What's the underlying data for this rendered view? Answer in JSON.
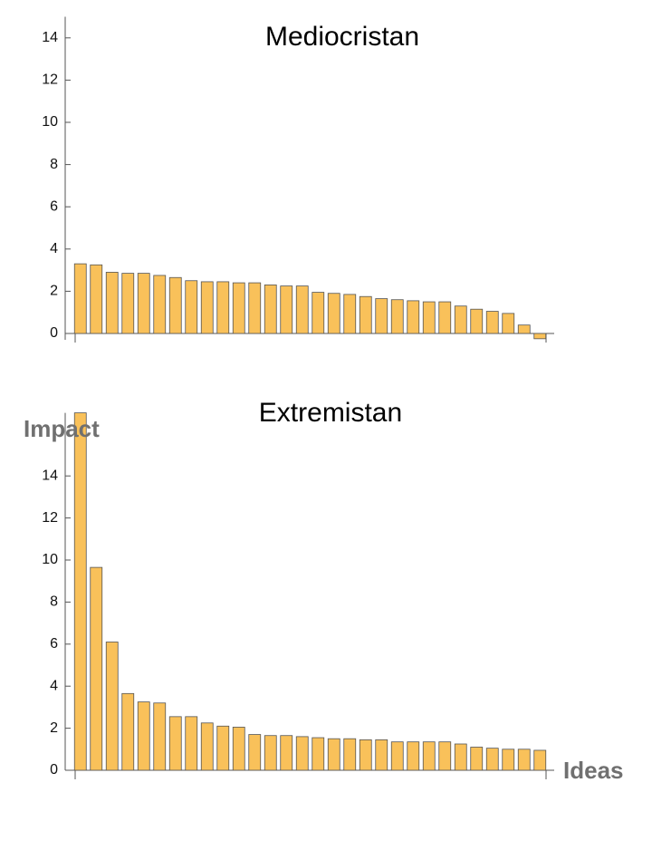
{
  "chart_data": [
    {
      "type": "bar",
      "title": "Mediocristan",
      "values": [
        3.3,
        3.25,
        2.9,
        2.85,
        2.85,
        2.75,
        2.65,
        2.5,
        2.45,
        2.45,
        2.4,
        2.4,
        2.3,
        2.25,
        2.25,
        1.95,
        1.9,
        1.85,
        1.75,
        1.65,
        1.6,
        1.55,
        1.5,
        1.5,
        1.3,
        1.15,
        1.05,
        0.95,
        0.4,
        -0.25
      ],
      "color": "#f9c15a",
      "ylim": [
        -0.3,
        15
      ],
      "yticks": [
        0,
        2,
        4,
        6,
        8,
        10,
        12,
        14
      ]
    },
    {
      "type": "bar",
      "title": "Extremistan",
      "x_label": "Ideas",
      "y_label": "Impact",
      "values": [
        17,
        9.65,
        6.1,
        3.65,
        3.25,
        3.2,
        2.55,
        2.55,
        2.25,
        2.1,
        2.05,
        1.7,
        1.65,
        1.65,
        1.6,
        1.55,
        1.5,
        1.5,
        1.45,
        1.45,
        1.35,
        1.35,
        1.35,
        1.35,
        1.25,
        1.1,
        1.05,
        1.0,
        1.0,
        0.95
      ],
      "color": "#f9c15a",
      "ylim": [
        0,
        17
      ],
      "yticks": [
        0,
        2,
        4,
        6,
        8,
        10,
        12,
        14
      ]
    }
  ]
}
